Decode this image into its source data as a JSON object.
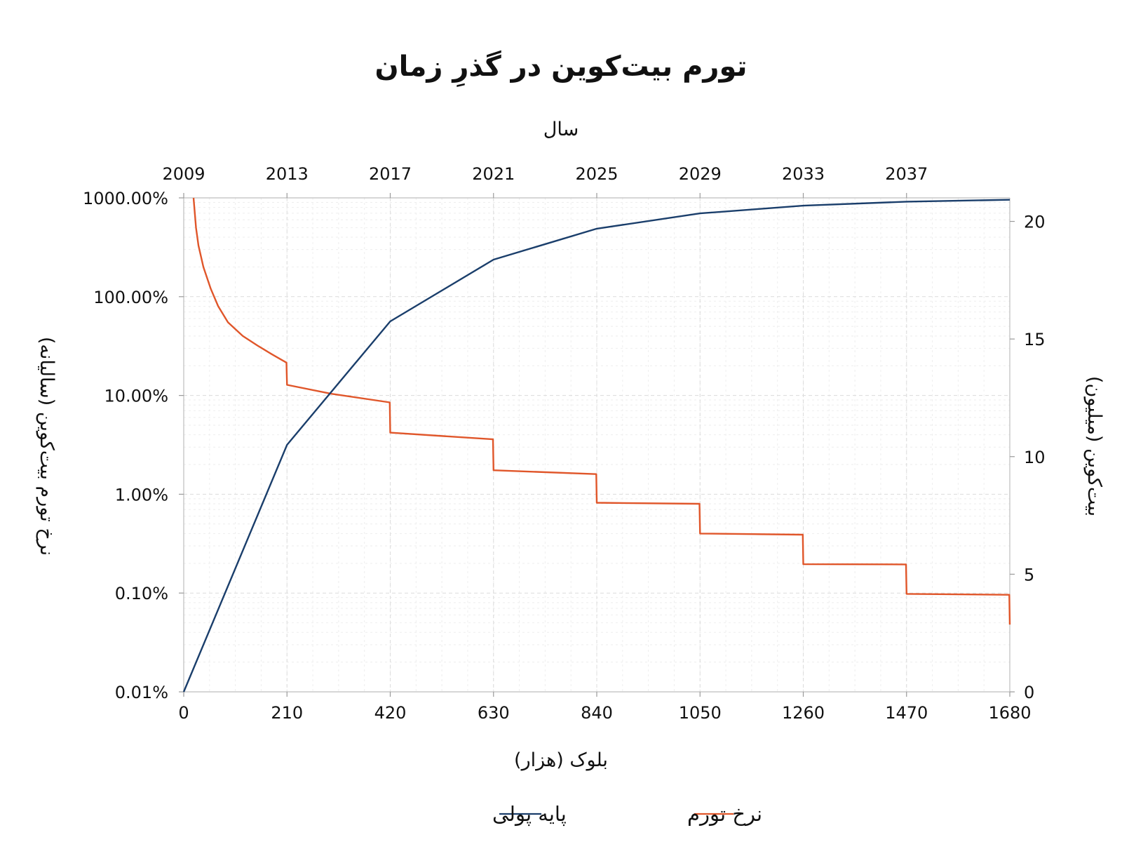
{
  "chart_data": {
    "type": "line",
    "title": "تورم بیت‌کوین در گذرِ زمان",
    "x_axis": {
      "label": "بلوک (هزار)",
      "range": [
        0,
        1680
      ],
      "ticks": [
        0,
        210,
        420,
        630,
        840,
        1050,
        1260,
        1470,
        1680
      ]
    },
    "top_axis": {
      "label": "سال",
      "ticks": [
        {
          "block": 0,
          "label": "2009"
        },
        {
          "block": 210,
          "label": "2013"
        },
        {
          "block": 420,
          "label": "2017"
        },
        {
          "block": 630,
          "label": "2021"
        },
        {
          "block": 840,
          "label": "2025"
        },
        {
          "block": 1050,
          "label": "2029"
        },
        {
          "block": 1260,
          "label": "2033"
        },
        {
          "block": 1470,
          "label": "2037"
        }
      ]
    },
    "y_left": {
      "label": "نرخ تورم بیت‌کوین (سالیانه)",
      "scale": "log",
      "range": [
        0.01,
        1000
      ],
      "ticks": [
        {
          "value": 0.01,
          "label": "0.01%"
        },
        {
          "value": 0.1,
          "label": "0.10%"
        },
        {
          "value": 1,
          "label": "1.00%"
        },
        {
          "value": 10,
          "label": "10.00%"
        },
        {
          "value": 100,
          "label": "100.00%"
        },
        {
          "value": 1000,
          "label": "1000.00%"
        }
      ]
    },
    "y_right": {
      "label": "بیت‌کوین (میلیون)",
      "scale": "linear",
      "range": [
        0,
        21
      ],
      "ticks": [
        0,
        5,
        10,
        15,
        20
      ]
    },
    "grid": true,
    "legend_position": "bottom",
    "series": [
      {
        "name": "نرخ تورم",
        "axis": "left",
        "color": "#e0562a",
        "points": [
          [
            20,
            1000
          ],
          [
            25,
            500
          ],
          [
            30,
            330
          ],
          [
            40,
            200
          ],
          [
            55,
            120
          ],
          [
            70,
            80
          ],
          [
            90,
            55
          ],
          [
            120,
            40
          ],
          [
            150,
            32
          ],
          [
            180,
            26
          ],
          [
            209,
            21.5
          ],
          [
            210,
            12.8
          ],
          [
            300,
            10.4
          ],
          [
            419,
            8.5
          ],
          [
            420,
            4.2
          ],
          [
            629,
            3.6
          ],
          [
            630,
            1.75
          ],
          [
            839,
            1.6
          ],
          [
            840,
            0.82
          ],
          [
            1049,
            0.8
          ],
          [
            1050,
            0.4
          ],
          [
            1259,
            0.39
          ],
          [
            1260,
            0.196
          ],
          [
            1469,
            0.195
          ],
          [
            1470,
            0.098
          ],
          [
            1679,
            0.096
          ],
          [
            1680,
            0.048
          ]
        ]
      },
      {
        "name": "پایه پولی",
        "axis": "right",
        "color": "#1a3e6b",
        "points": [
          [
            0,
            0
          ],
          [
            210,
            10.5
          ],
          [
            420,
            15.75
          ],
          [
            630,
            18.375
          ],
          [
            840,
            19.69
          ],
          [
            1050,
            20.34
          ],
          [
            1260,
            20.67
          ],
          [
            1470,
            20.84
          ],
          [
            1680,
            20.92
          ]
        ]
      }
    ]
  }
}
